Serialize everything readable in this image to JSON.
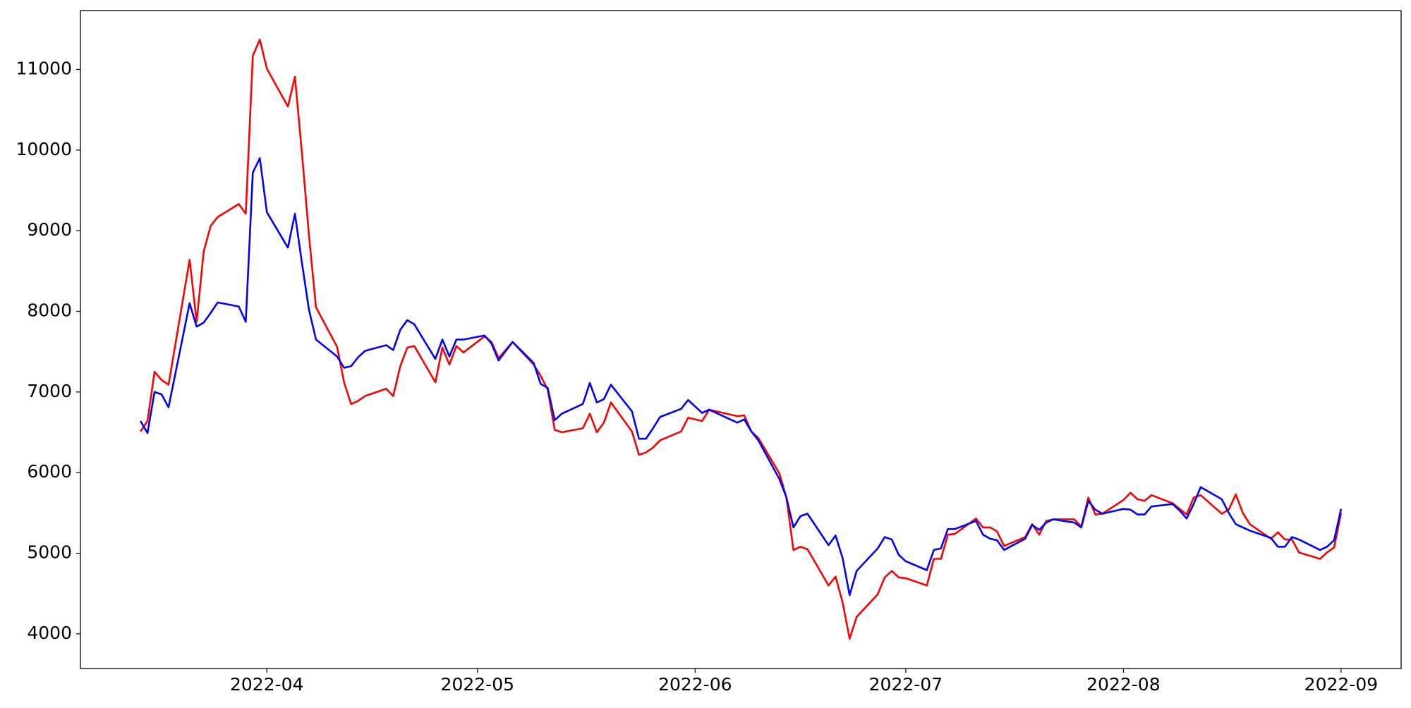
{
  "chart_data": {
    "type": "line",
    "x": [
      19065,
      19066,
      19067,
      19068,
      19069,
      19072,
      19073,
      19074,
      19075,
      19076,
      19079,
      19080,
      19081,
      19082,
      19083,
      19086,
      19087,
      19088,
      19089,
      19090,
      19093,
      19094,
      19095,
      19096,
      19097,
      19100,
      19101,
      19102,
      19103,
      19104,
      19107,
      19108,
      19109,
      19110,
      19111,
      19114,
      19115,
      19116,
      19118,
      19121,
      19122,
      19123,
      19124,
      19125,
      19128,
      19129,
      19130,
      19131,
      19132,
      19135,
      19136,
      19137,
      19138,
      19139,
      19142,
      19143,
      19145,
      19146,
      19150,
      19151,
      19152,
      19153,
      19156,
      19157,
      19158,
      19159,
      19160,
      19163,
      19164,
      19165,
      19166,
      19167,
      19170,
      19171,
      19172,
      19173,
      19174,
      19177,
      19178,
      19179,
      19180,
      19181,
      19184,
      19185,
      19186,
      19187,
      19188,
      19191,
      19192,
      19193,
      19194,
      19195,
      19198,
      19199,
      19200,
      19201,
      19202,
      19205,
      19206,
      19207,
      19208,
      19209,
      19212,
      19213,
      19214,
      19215,
      19216,
      19219,
      19220,
      19221,
      19222,
      19223,
      19226,
      19227,
      19228,
      19229,
      19230,
      19233,
      19234,
      19235,
      19236
    ],
    "series": [
      {
        "color": "#ff0000",
        "values": [
          6510,
          6640,
          7250,
          7150,
          7090,
          8640,
          7870,
          8740,
          9060,
          9170,
          9330,
          9210,
          11170,
          11370,
          11010,
          10540,
          10910,
          9960,
          8940,
          8050,
          7560,
          7120,
          6850,
          6890,
          6950,
          7040,
          6950,
          7320,
          7550,
          7570,
          7120,
          7550,
          7340,
          7570,
          7490,
          7690,
          7620,
          7420,
          7620,
          7340,
          7200,
          7030,
          6530,
          6500,
          6550,
          6730,
          6500,
          6620,
          6870,
          6510,
          6220,
          6250,
          6310,
          6400,
          6510,
          6680,
          6640,
          6780,
          6700,
          6710,
          6510,
          6430,
          5990,
          5690,
          5040,
          5080,
          5050,
          4600,
          4710,
          4390,
          3940,
          4210,
          4490,
          4700,
          4780,
          4700,
          4690,
          4600,
          4930,
          4930,
          5230,
          5240,
          5430,
          5320,
          5320,
          5270,
          5090,
          5200,
          5360,
          5230,
          5400,
          5420,
          5420,
          5330,
          5690,
          5480,
          5490,
          5660,
          5750,
          5670,
          5650,
          5720,
          5620,
          5550,
          5480,
          5690,
          5720,
          5490,
          5540,
          5730,
          5500,
          5360,
          5180,
          5260,
          5170,
          5170,
          5010,
          4930,
          5010,
          5070,
          5500
        ]
      },
      {
        "color": "#0000ff",
        "values": [
          6640,
          6490,
          7000,
          6970,
          6810,
          8100,
          7810,
          7860,
          7980,
          8110,
          8060,
          7870,
          9720,
          9900,
          9230,
          8790,
          9210,
          8600,
          8020,
          7650,
          7440,
          7300,
          7320,
          7430,
          7510,
          7580,
          7520,
          7770,
          7890,
          7840,
          7410,
          7650,
          7440,
          7650,
          7650,
          7700,
          7600,
          7390,
          7620,
          7360,
          7100,
          7050,
          6650,
          6730,
          6850,
          7110,
          6870,
          6910,
          7090,
          6760,
          6420,
          6420,
          6550,
          6690,
          6790,
          6900,
          6740,
          6780,
          6620,
          6660,
          6510,
          6400,
          5920,
          5690,
          5320,
          5460,
          5490,
          5100,
          5220,
          4940,
          4480,
          4780,
          5060,
          5200,
          5170,
          4980,
          4900,
          4790,
          5040,
          5060,
          5300,
          5300,
          5400,
          5230,
          5180,
          5160,
          5040,
          5180,
          5350,
          5290,
          5380,
          5420,
          5380,
          5320,
          5650,
          5540,
          5490,
          5550,
          5540,
          5480,
          5480,
          5580,
          5610,
          5530,
          5430,
          5610,
          5820,
          5670,
          5500,
          5360,
          5320,
          5280,
          5190,
          5080,
          5080,
          5200,
          5170,
          5040,
          5080,
          5160,
          5550
        ]
      }
    ],
    "xlim": [
      19056.45,
      19244.55
    ],
    "xticks": [
      {
        "value": 19083,
        "label": "2022-04"
      },
      {
        "value": 19113,
        "label": "2022-05"
      },
      {
        "value": 19144,
        "label": "2022-06"
      },
      {
        "value": 19174,
        "label": "2022-07"
      },
      {
        "value": 19205,
        "label": "2022-08"
      },
      {
        "value": 19236,
        "label": "2022-09"
      }
    ],
    "ylim": [
      3570,
      11730
    ],
    "yticks": [
      4000,
      5000,
      6000,
      7000,
      8000,
      9000,
      10000,
      11000
    ],
    "grid": false
  }
}
